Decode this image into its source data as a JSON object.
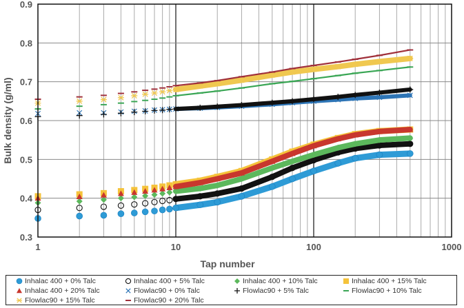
{
  "chart_data": {
    "type": "scatter",
    "title": "",
    "xlabel": "Tap number",
    "ylabel": "Bulk density (g/ml)",
    "xscale": "log",
    "xlim": [
      1,
      1000
    ],
    "ylim": [
      0.3,
      0.9
    ],
    "xticks": [
      "1",
      "10",
      "100",
      "1000"
    ],
    "yticks": [
      "0.3",
      "0.4",
      "0.5",
      "0.6",
      "0.7",
      "0.8",
      "0.9"
    ],
    "grid": true,
    "legend_position": "bottom",
    "x": [
      1,
      2,
      3,
      4,
      5,
      6,
      7,
      8,
      9,
      10,
      15,
      20,
      30,
      50,
      70,
      100,
      150,
      200,
      300,
      500
    ],
    "series": [
      {
        "name": "Inhalac 400 + 0% Talc",
        "marker": "circle-filled",
        "color": "#2e9bd6",
        "values": [
          0.348,
          0.354,
          0.356,
          0.36,
          0.362,
          0.365,
          0.367,
          0.37,
          0.372,
          0.375,
          0.383,
          0.39,
          0.405,
          0.43,
          0.45,
          0.47,
          0.49,
          0.503,
          0.512,
          0.515
        ]
      },
      {
        "name": "Inhalac 400 + 5% Talc",
        "marker": "circle-open",
        "color": "#111111",
        "values": [
          0.37,
          0.375,
          0.378,
          0.381,
          0.384,
          0.387,
          0.39,
          0.393,
          0.395,
          0.398,
          0.405,
          0.412,
          0.425,
          0.455,
          0.478,
          0.498,
          0.518,
          0.528,
          0.536,
          0.54
        ]
      },
      {
        "name": "Inhalac 400 + 10% Talc",
        "marker": "diamond",
        "color": "#5cb85c",
        "values": [
          0.388,
          0.392,
          0.396,
          0.4,
          0.403,
          0.406,
          0.409,
          0.412,
          0.415,
          0.418,
          0.425,
          0.433,
          0.45,
          0.478,
          0.495,
          0.512,
          0.53,
          0.54,
          0.55,
          0.555
        ]
      },
      {
        "name": "Inhalac 400 + 15% Talc",
        "marker": "square",
        "color": "#f5c33b",
        "values": [
          0.405,
          0.41,
          0.413,
          0.418,
          0.421,
          0.424,
          0.427,
          0.43,
          0.433,
          0.436,
          0.445,
          0.455,
          0.47,
          0.5,
          0.52,
          0.538,
          0.555,
          0.565,
          0.573,
          0.577
        ]
      },
      {
        "name": "Inhalac 400 + 20% Talc",
        "marker": "triangle",
        "color": "#c8372d",
        "values": [
          0.4,
          0.404,
          0.408,
          0.412,
          0.415,
          0.418,
          0.421,
          0.424,
          0.427,
          0.43,
          0.44,
          0.45,
          0.465,
          0.495,
          0.515,
          0.535,
          0.553,
          0.563,
          0.572,
          0.577
        ]
      },
      {
        "name": "Flowlac90 + 0% Talc",
        "marker": "x",
        "color": "#2e75b6",
        "values": [
          0.618,
          0.62,
          0.62,
          0.622,
          0.624,
          0.625,
          0.627,
          0.628,
          0.629,
          0.63,
          0.632,
          0.634,
          0.637,
          0.642,
          0.646,
          0.65,
          0.654,
          0.657,
          0.66,
          0.665
        ]
      },
      {
        "name": "Flowlac90 + 5% Talc",
        "marker": "plus",
        "color": "#111111",
        "values": [
          0.61,
          0.613,
          0.616,
          0.619,
          0.622,
          0.624,
          0.626,
          0.627,
          0.629,
          0.63,
          0.633,
          0.636,
          0.64,
          0.646,
          0.65,
          0.655,
          0.661,
          0.666,
          0.672,
          0.68
        ]
      },
      {
        "name": "Flowlac90 + 10% Talc",
        "marker": "dash",
        "color": "#3aa655",
        "values": [
          0.63,
          0.637,
          0.641,
          0.645,
          0.649,
          0.652,
          0.655,
          0.658,
          0.661,
          0.664,
          0.671,
          0.676,
          0.684,
          0.695,
          0.701,
          0.708,
          0.716,
          0.722,
          0.729,
          0.738
        ]
      },
      {
        "name": "Flowlac90 + 15% Talc",
        "marker": "star",
        "color": "#f0c850",
        "values": [
          0.645,
          0.65,
          0.654,
          0.659,
          0.664,
          0.668,
          0.671,
          0.674,
          0.677,
          0.68,
          0.689,
          0.695,
          0.704,
          0.717,
          0.725,
          0.732,
          0.739,
          0.745,
          0.752,
          0.76
        ]
      },
      {
        "name": "Flowlac90 + 20% Talc",
        "marker": "dash",
        "color": "#a0303a",
        "values": [
          0.655,
          0.661,
          0.665,
          0.67,
          0.674,
          0.678,
          0.681,
          0.684,
          0.687,
          0.69,
          0.697,
          0.703,
          0.713,
          0.725,
          0.734,
          0.742,
          0.751,
          0.758,
          0.768,
          0.782
        ]
      }
    ]
  }
}
